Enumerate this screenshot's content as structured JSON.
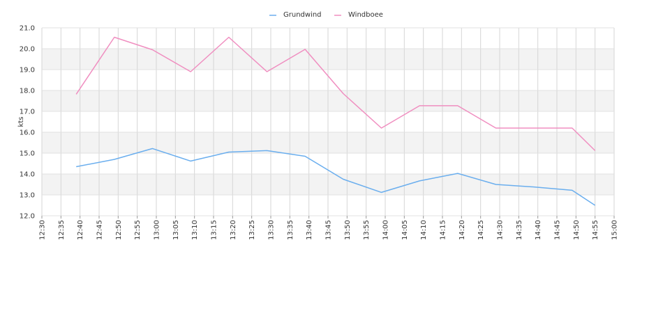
{
  "chart_data": {
    "type": "line",
    "title": "",
    "ylabel": "kts",
    "xlabel": "",
    "ylim": [
      12.0,
      21.0
    ],
    "yticks": [
      "12.0",
      "13.0",
      "14.0",
      "15.0",
      "16.0",
      "17.0",
      "18.0",
      "19.0",
      "20.0",
      "21.0"
    ],
    "xticks": [
      "12:30",
      "12:35",
      "12:40",
      "12:45",
      "12:50",
      "12:55",
      "13:00",
      "13:05",
      "13:10",
      "13:15",
      "13:20",
      "13:25",
      "13:30",
      "13:35",
      "13:40",
      "13:45",
      "13:50",
      "13:55",
      "14:00",
      "14:05",
      "14:10",
      "14:15",
      "14:20",
      "14:25",
      "14:30",
      "14:35",
      "14:40",
      "14:45",
      "14:50",
      "14:55",
      "15:00"
    ],
    "xrange": [
      "12:30",
      "15:00"
    ],
    "grid": true,
    "legend": "top-center",
    "series": [
      {
        "name": "Grundwind",
        "color": "#6aaeee",
        "points": [
          {
            "x": "12:39",
            "y": 14.35
          },
          {
            "x": "12:49",
            "y": 14.7
          },
          {
            "x": "12:59",
            "y": 15.22
          },
          {
            "x": "13:09",
            "y": 14.62
          },
          {
            "x": "13:19",
            "y": 15.05
          },
          {
            "x": "13:29",
            "y": 15.12
          },
          {
            "x": "13:39",
            "y": 14.85
          },
          {
            "x": "13:49",
            "y": 13.75
          },
          {
            "x": "13:59",
            "y": 13.12
          },
          {
            "x": "14:09",
            "y": 13.67
          },
          {
            "x": "14:19",
            "y": 14.03
          },
          {
            "x": "14:29",
            "y": 13.5
          },
          {
            "x": "14:39",
            "y": 13.38
          },
          {
            "x": "14:49",
            "y": 13.22
          },
          {
            "x": "14:55",
            "y": 12.5
          }
        ]
      },
      {
        "name": "Windboee",
        "color": "#f08ec0",
        "points": [
          {
            "x": "12:39",
            "y": 17.82
          },
          {
            "x": "12:49",
            "y": 20.55
          },
          {
            "x": "12:59",
            "y": 19.95
          },
          {
            "x": "13:09",
            "y": 18.9
          },
          {
            "x": "13:19",
            "y": 20.55
          },
          {
            "x": "13:29",
            "y": 18.9
          },
          {
            "x": "13:39",
            "y": 19.97
          },
          {
            "x": "13:49",
            "y": 17.85
          },
          {
            "x": "13:59",
            "y": 16.2
          },
          {
            "x": "14:09",
            "y": 17.27
          },
          {
            "x": "14:19",
            "y": 17.27
          },
          {
            "x": "14:29",
            "y": 16.2
          },
          {
            "x": "14:39",
            "y": 16.2
          },
          {
            "x": "14:49",
            "y": 16.2
          },
          {
            "x": "14:55",
            "y": 15.12
          }
        ]
      }
    ]
  }
}
